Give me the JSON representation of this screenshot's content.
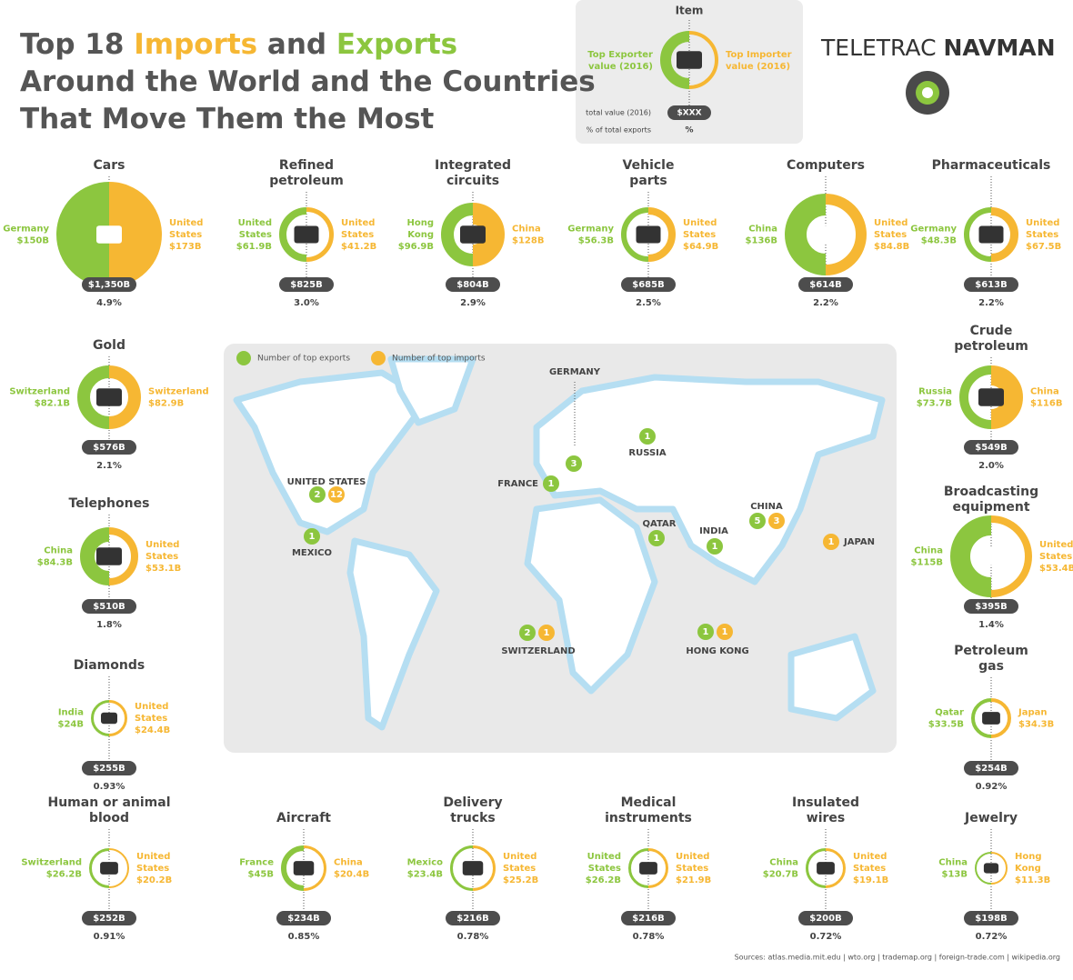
{
  "header": {
    "title": [
      [
        "Top 18 ",
        "Imports",
        " and ",
        "Exports"
      ],
      [
        "Around the World and the Countries"
      ],
      [
        "That Move Them the Most"
      ]
    ],
    "brand": [
      "TELETRAC ",
      "NAVMAN"
    ]
  },
  "legend": {
    "title": "Item",
    "exporter": [
      "Top Exporter",
      "value (2016)"
    ],
    "importer": [
      "Top Importer",
      "value (2016)"
    ],
    "total_label": "total value (2016)",
    "total": "$XXX",
    "pct_label": "% of total exports",
    "pct": "%"
  },
  "items": [
    {
      "name": [
        "Cars"
      ],
      "exporter": [
        "Germany"
      ],
      "exporter_value": "$150B",
      "importer": [
        "United",
        "States"
      ],
      "importer_value": "$173B",
      "total": "$1,350B",
      "pct": "4.9%"
    },
    {
      "name": [
        "Refined",
        "petroleum"
      ],
      "exporter": [
        "United",
        "States"
      ],
      "exporter_value": "$61.9B",
      "importer": [
        "United",
        "States"
      ],
      "importer_value": "$41.2B",
      "total": "$825B",
      "pct": "3.0%"
    },
    {
      "name": [
        "Integrated",
        "circuits"
      ],
      "exporter": [
        "Hong",
        "Kong"
      ],
      "exporter_value": "$96.9B",
      "importer": [
        "China"
      ],
      "importer_value": "$128B",
      "total": "$804B",
      "pct": "2.9%"
    },
    {
      "name": [
        "Vehicle",
        "parts"
      ],
      "exporter": [
        "Germany"
      ],
      "exporter_value": "$56.3B",
      "importer": [
        "United",
        "States"
      ],
      "importer_value": "$64.9B",
      "total": "$685B",
      "pct": "2.5%"
    },
    {
      "name": [
        "Computers"
      ],
      "exporter": [
        "China"
      ],
      "exporter_value": "$136B",
      "importer": [
        "United",
        "States"
      ],
      "importer_value": "$84.8B",
      "total": "$614B",
      "pct": "2.2%"
    },
    {
      "name": [
        "Pharmaceuticals"
      ],
      "exporter": [
        "Germany"
      ],
      "exporter_value": "$48.3B",
      "importer": [
        "United",
        "States"
      ],
      "importer_value": "$67.5B",
      "total": "$613B",
      "pct": "2.2%"
    },
    {
      "name": [
        "Gold"
      ],
      "exporter": [
        "Switzerland"
      ],
      "exporter_value": "$82.1B",
      "importer": [
        "Switzerland"
      ],
      "importer_value": "$82.9B",
      "total": "$576B",
      "pct": "2.1%"
    },
    {
      "name": [
        "Crude",
        "petroleum"
      ],
      "exporter": [
        "Russia"
      ],
      "exporter_value": "$73.7B",
      "importer": [
        "China"
      ],
      "importer_value": "$116B",
      "total": "$549B",
      "pct": "2.0%"
    },
    {
      "name": [
        "Telephones"
      ],
      "exporter": [
        "China"
      ],
      "exporter_value": "$84.3B",
      "importer": [
        "United",
        "States"
      ],
      "importer_value": "$53.1B",
      "total": "$510B",
      "pct": "1.8%"
    },
    {
      "name": [
        "Broadcasting",
        "equipment"
      ],
      "exporter": [
        "China"
      ],
      "exporter_value": "$115B",
      "importer": [
        "United",
        "States"
      ],
      "importer_value": "$53.4B",
      "total": "$395B",
      "pct": "1.4%"
    },
    {
      "name": [
        "Diamonds"
      ],
      "exporter": [
        "India"
      ],
      "exporter_value": "$24B",
      "importer": [
        "United",
        "States"
      ],
      "importer_value": "$24.4B",
      "total": "$255B",
      "pct": "0.93%"
    },
    {
      "name": [
        "Petroleum",
        "gas"
      ],
      "exporter": [
        "Qatar"
      ],
      "exporter_value": "$33.5B",
      "importer": [
        "Japan"
      ],
      "importer_value": "$34.3B",
      "total": "$254B",
      "pct": "0.92%"
    },
    {
      "name": [
        "Human or animal",
        "blood"
      ],
      "exporter": [
        "Switzerland"
      ],
      "exporter_value": "$26.2B",
      "importer": [
        "United",
        "States"
      ],
      "importer_value": "$20.2B",
      "total": "$252B",
      "pct": "0.91%"
    },
    {
      "name": [
        "Aircraft"
      ],
      "exporter": [
        "France"
      ],
      "exporter_value": "$45B",
      "importer": [
        "China"
      ],
      "importer_value": "$20.4B",
      "total": "$234B",
      "pct": "0.85%"
    },
    {
      "name": [
        "Delivery",
        "trucks"
      ],
      "exporter": [
        "Mexico"
      ],
      "exporter_value": "$23.4B",
      "importer": [
        "United",
        "States"
      ],
      "importer_value": "$25.2B",
      "total": "$216B",
      "pct": "0.78%"
    },
    {
      "name": [
        "Medical",
        "instruments"
      ],
      "exporter": [
        "United",
        "States"
      ],
      "exporter_value": "$26.2B",
      "importer": [
        "United",
        "States"
      ],
      "importer_value": "$21.9B",
      "total": "$216B",
      "pct": "0.78%"
    },
    {
      "name": [
        "Insulated",
        "wires"
      ],
      "exporter": [
        "China"
      ],
      "exporter_value": "$20.7B",
      "importer": [
        "United",
        "States"
      ],
      "importer_value": "$19.1B",
      "total": "$200B",
      "pct": "0.72%"
    },
    {
      "name": [
        "Jewelry"
      ],
      "exporter": [
        "China"
      ],
      "exporter_value": "$13B",
      "importer": [
        "Hong",
        "Kong"
      ],
      "importer_value": "$11.3B",
      "total": "$198B",
      "pct": "0.72%"
    }
  ],
  "map": {
    "legend_exports": "Number of top exports",
    "legend_imports": "Number of top imports",
    "markers": [
      {
        "label": "GERMANY",
        "exports": 3
      },
      {
        "label": "RUSSIA",
        "exports": 1
      },
      {
        "label": "FRANCE",
        "exports": 1
      },
      {
        "label": "UNITED STATES",
        "exports": 2,
        "imports": 12
      },
      {
        "label": "MEXICO",
        "exports": 1
      },
      {
        "label": "CHINA",
        "exports": 5,
        "imports": 3
      },
      {
        "label": "QATAR",
        "exports": 1
      },
      {
        "label": "INDIA",
        "exports": 1
      },
      {
        "label": "JAPAN",
        "imports": 1
      },
      {
        "label": "SWITZERLAND",
        "exports": 2,
        "imports": 1
      },
      {
        "label": "HONG KONG",
        "exports": 1,
        "imports": 1
      }
    ]
  },
  "sources": "Sources: atlas.media.mit.edu  |  wto.org  |  trademap.org  |  foreign-trade.com  |  wikipedia.org"
}
